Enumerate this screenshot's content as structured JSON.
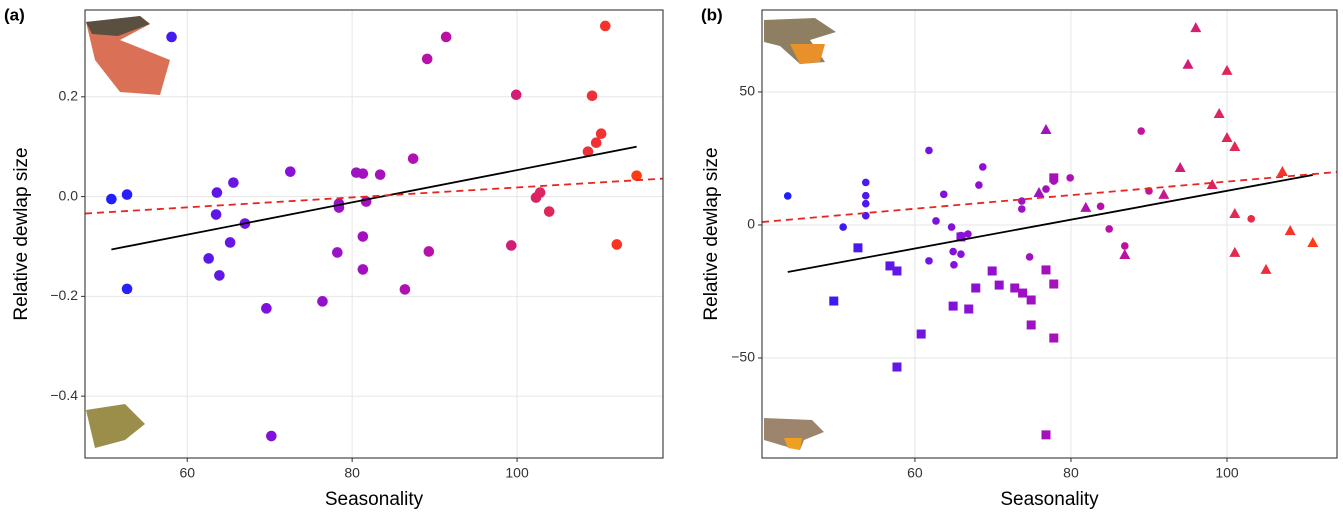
{
  "chart_data": [
    {
      "type": "scatter",
      "panel_label": "(a)",
      "x_label": "Seasonality",
      "y_label": "Relative dewlap size",
      "xlim": [
        47.6,
        117.7
      ],
      "ylim": [
        -0.524,
        0.374
      ],
      "xticks": [
        60,
        80,
        100
      ],
      "yticks": [
        {
          "value": -0.4,
          "label": "−0.4"
        },
        {
          "value": -0.2,
          "label": "−0.2"
        },
        {
          "value": 0,
          "label": "0.0"
        },
        0.2
      ],
      "grid": true,
      "colormap": [
        "#1f1fff",
        "#8a10d8",
        "#c0129e",
        "#ff3a14"
      ],
      "series": [
        {
          "marker": "circle",
          "x": [
            50.8,
            52.7,
            52.7,
            58.1,
            63.6,
            63.5,
            65.6,
            62.6,
            63.9,
            65.2,
            67.0,
            69.6,
            70.2,
            72.5,
            76.4,
            78.2,
            78.4,
            78.4,
            80.5,
            81.3,
            81.7,
            81.3,
            81.3,
            83.4,
            86.4,
            87.4,
            89.1,
            89.3,
            91.4,
            99.3,
            99.9,
            102.3,
            102.8,
            103.9,
            110.7,
            108.6,
            109.1,
            109.6,
            110.2,
            112.1,
            114.5
          ],
          "y": [
            -0.005,
            0.004,
            -0.185,
            0.32,
            0.008,
            -0.036,
            0.028,
            -0.124,
            -0.158,
            -0.092,
            -0.054,
            -0.224,
            -0.48,
            0.05,
            -0.21,
            -0.112,
            -0.014,
            -0.022,
            0.048,
            0.046,
            -0.01,
            -0.08,
            -0.146,
            0.044,
            -0.186,
            0.076,
            0.276,
            -0.11,
            0.32,
            -0.098,
            0.204,
            -0.002,
            0.008,
            -0.03,
            0.342,
            0.09,
            0.202,
            0.108,
            0.126,
            -0.096,
            0.042
          ]
        }
      ],
      "lines": [
        {
          "color": "#000000",
          "dash": "solid",
          "x": [
            50.8,
            114.5
          ],
          "y": [
            -0.106,
            0.1
          ]
        },
        {
          "color": "#e8251f",
          "dash": "dashed",
          "x": [
            47.6,
            117.7
          ],
          "y": [
            -0.034,
            0.036
          ]
        }
      ]
    },
    {
      "type": "scatter",
      "panel_label": "(b)",
      "x_label": "Seasonality",
      "y_label": "Relative dewlap size",
      "xlim": [
        40.4,
        114.1
      ],
      "ylim": [
        -87.6,
        80.8
      ],
      "xticks": [
        60,
        80,
        100
      ],
      "yticks": [
        {
          "value": -50,
          "label": "−50"
        },
        0,
        50
      ],
      "grid": true,
      "colormap": [
        "#1f1fff",
        "#8a10d8",
        "#c0129e",
        "#ff3a14"
      ],
      "series": [
        {
          "marker": "circle",
          "x": [
            43.7,
            50.8,
            53.7,
            53.7,
            53.7,
            53.7,
            61.8,
            61.8,
            62.7,
            63.7,
            64.7,
            64.9,
            65.0,
            65.9,
            65.9,
            66.8,
            68.2,
            68.7,
            73.7,
            73.7,
            74.7,
            76.8,
            77.8,
            79.9,
            83.8,
            84.9,
            86.9,
            89.0,
            90.0,
            103.1
          ],
          "y": [
            10.9,
            -0.8,
            16,
            11,
            8,
            3.5,
            28,
            -13.5,
            1.5,
            11.5,
            -0.8,
            -10,
            -15,
            -4,
            -11,
            -3.4,
            15,
            21.8,
            9,
            6,
            -12,
            13.5,
            16.5,
            17.7,
            7,
            -1.5,
            -7.9,
            35.3,
            12.8,
            2.3
          ]
        },
        {
          "marker": "square",
          "x": [
            49.6,
            52.7,
            56.8,
            57.7,
            57.7,
            60.8,
            64.9,
            65.9,
            66.9,
            67.8,
            69.9,
            70.8,
            72.8,
            73.8,
            74.9,
            74.9,
            76.8,
            76.8,
            77.8,
            77.8,
            77.8
          ],
          "y": [
            -28.6,
            -8.6,
            -15.4,
            -17.3,
            -53.4,
            -41,
            -30.5,
            -4.5,
            -31.6,
            -23.7,
            -17.3,
            -22.6,
            -23.7,
            -25.6,
            -28.2,
            -37.6,
            -16.9,
            -78.9,
            17.7,
            -22.2,
            -42.5
          ]
        },
        {
          "marker": "triangle",
          "x": [
            76.8,
            75.9,
            81.9,
            86.9,
            91.9,
            94.0,
            95.0,
            96.0,
            98.1,
            99.0,
            100.0,
            100.0,
            101.0,
            101.0,
            101.0,
            105.0,
            107.1,
            108.1,
            111.0
          ],
          "y": [
            35.7,
            12,
            6.4,
            -11.3,
            11.3,
            21.4,
            60.2,
            74,
            15,
            41.7,
            57.9,
            32.7,
            29.3,
            4.1,
            -10.5,
            -16.9,
            19.9,
            -2.3,
            -6.8
          ]
        }
      ],
      "lines": [
        {
          "color": "#000000",
          "dash": "solid",
          "x": [
            43.7,
            111.0
          ],
          "y": [
            -17.7,
            18.8
          ]
        },
        {
          "color": "#e8251f",
          "dash": "dashed",
          "x": [
            40.4,
            114.1
          ],
          "y": [
            1.1,
            19.9
          ]
        }
      ]
    }
  ]
}
